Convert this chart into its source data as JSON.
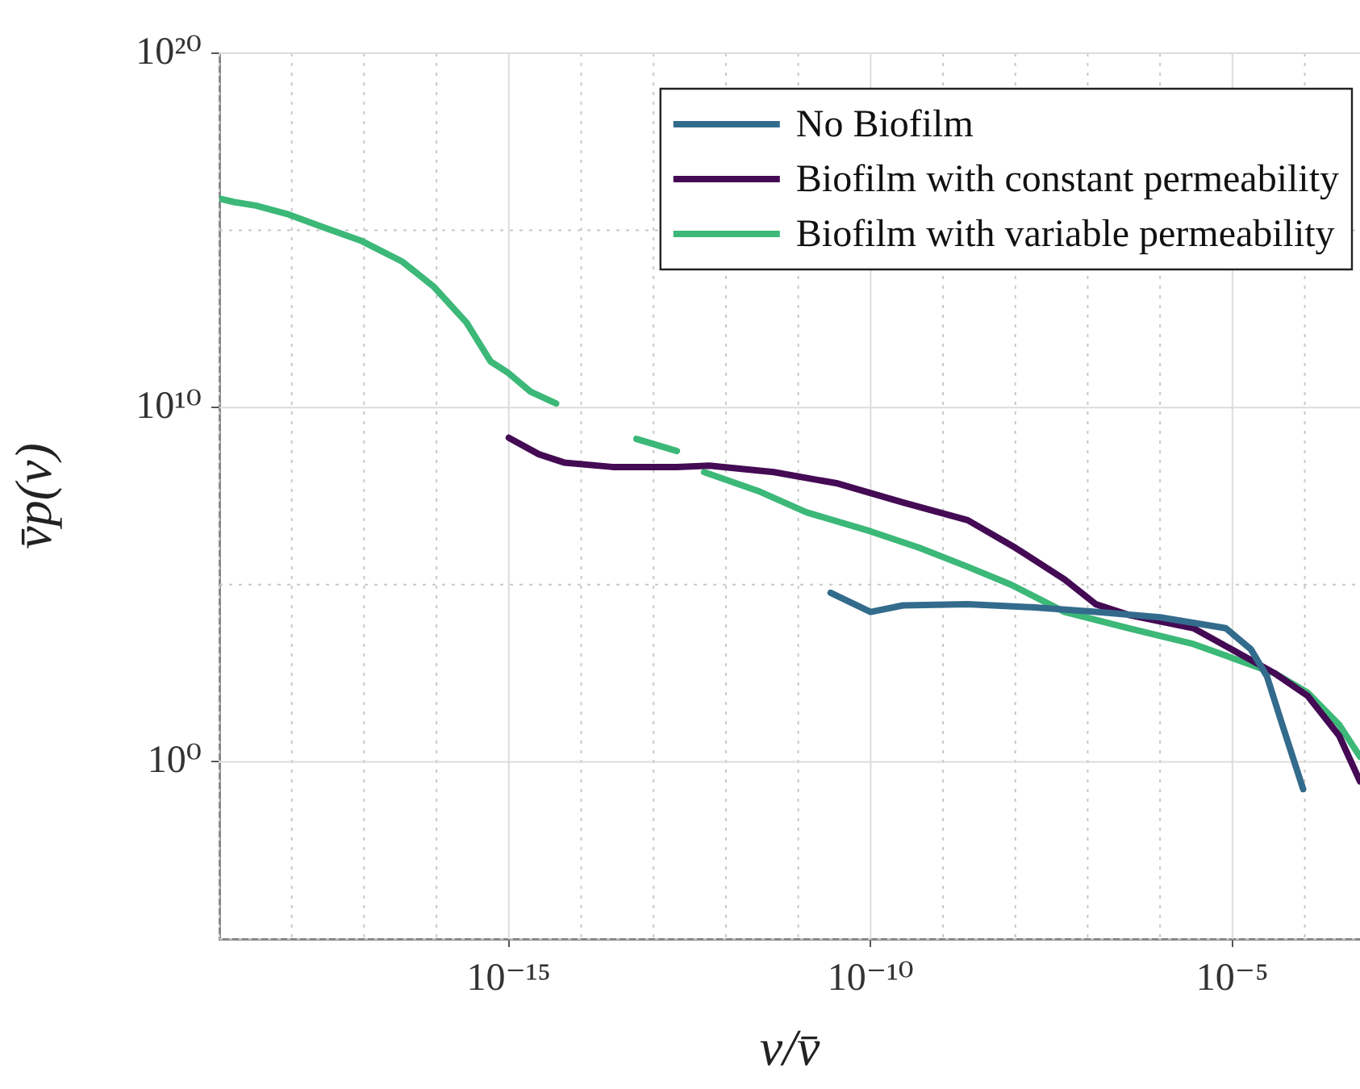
{
  "chart_data": {
    "type": "line",
    "xlabel": "v/v̄",
    "ylabel": "v̄p(v)",
    "log": "xy",
    "grid": true,
    "legend": "top right",
    "marker": "none",
    "line_style": "solid",
    "xlim": [
      1e-19,
      0.00058
    ],
    "ylim": [
      1e-05,
      1e+20
    ],
    "xticks": [
      {
        "value": 1e-19,
        "label": null
      },
      {
        "value": 1e-18,
        "label": null
      },
      {
        "value": 1e-17,
        "label": null
      },
      {
        "value": 1e-16,
        "label": null
      },
      {
        "value": 1e-15,
        "label": "10⁻¹⁵"
      },
      {
        "value": 1e-14,
        "label": null
      },
      {
        "value": 1e-13,
        "label": null
      },
      {
        "value": 1e-12,
        "label": null
      },
      {
        "value": 1e-11,
        "label": null
      },
      {
        "value": 1e-10,
        "label": "10⁻¹⁰"
      },
      {
        "value": 1e-09,
        "label": null
      },
      {
        "value": 1e-08,
        "label": null
      },
      {
        "value": 1e-07,
        "label": null
      },
      {
        "value": 1e-06,
        "label": null
      },
      {
        "value": 1e-05,
        "label": "10⁻⁵"
      },
      {
        "value": 0.0001,
        "label": null
      }
    ],
    "yticks": [
      {
        "value": 1e-05,
        "label": null
      },
      {
        "value": 1,
        "label": "10⁰"
      },
      {
        "value": 100000.0,
        "label": null
      },
      {
        "value": 10000000000.0,
        "label": "10¹⁰"
      },
      {
        "value": 1000000000000000.0,
        "label": null
      },
      {
        "value": 1e+20,
        "label": "10²⁰"
      }
    ],
    "series": [
      {
        "name": "No Biofilm",
        "color": "#336b8c",
        "x": [
          2.8e-11,
          1e-10,
          2.8e-10,
          2.2e-09,
          1.7e-08,
          1.3e-07,
          1e-06,
          8.1e-06,
          1.8e-05,
          3e-05,
          4.9e-05,
          9.5e-05
        ],
        "values": [
          59000.0,
          17000.0,
          26000.0,
          28000.0,
          23000.0,
          17000.0,
          12000.0,
          5900.0,
          1500.0,
          260.0,
          11,
          0.17
        ]
      },
      {
        "name": "Biofilm with constant permeability",
        "color": "#440a54",
        "x": [
          1e-15,
          2.6e-15,
          5.8e-15,
          2.7e-14,
          2.1e-13,
          5.9e-13,
          4.6e-12,
          3.5e-11,
          2.8e-10,
          2.2e-09,
          1e-08,
          4.8e-08,
          1.3e-07,
          3.7e-07,
          2.9e-06,
          3.8e-05,
          0.00011,
          0.0003,
          0.00058
        ],
        "values": [
          1400000000.0,
          480000000.0,
          280000000.0,
          210000000.0,
          210000000.0,
          230000000.0,
          150000000.0,
          72000000.0,
          21000000.0,
          6600000.0,
          1100000.0,
          140000.0,
          28000.0,
          14000.0,
          5900.0,
          320.0,
          72,
          5.4,
          0.28
        ]
      },
      {
        "name": "Biofilm with variable permeability",
        "color": "#3cb878",
        "x": [
          1e-19,
          1.6e-19,
          3.2e-19,
          9.1e-19,
          2.5e-18,
          9.3e-18,
          3.4e-17,
          9.3e-17,
          2.6e-16,
          5.6e-16,
          9.5e-16,
          2e-15,
          4.5e-15,
          8e-15,
          5.8e-14,
          2.1e-13,
          3e-13,
          5e-13,
          2.8e-12,
          1.3e-11,
          1e-10,
          4.7e-10,
          2.2e-09,
          8.7e-09,
          4.8e-08,
          3.7e-07,
          2.9e-06,
          3.8e-05,
          0.00011,
          0.0003,
          0.00058
        ],
        "values": [
          7900000000000000.0,
          6300000000000000.0,
          5000000000000000.0,
          2800000000000000.0,
          1300000000000000.0,
          500000000000000.0,
          130000000000000.0,
          25000000000000.0,
          2500000000000.0,
          200000000000.0,
          100000000000.0,
          28000000000.0,
          13000000000.0,
          null,
          1300000000.0,
          590000000.0,
          null,
          150000000.0,
          44000000.0,
          11000000.0,
          3200000.0,
          1100000.0,
          320000.0,
          100000.0,
          17000.0,
          5900.0,
          2100.0,
          320.0,
          89,
          11,
          1.4
        ]
      }
    ]
  }
}
